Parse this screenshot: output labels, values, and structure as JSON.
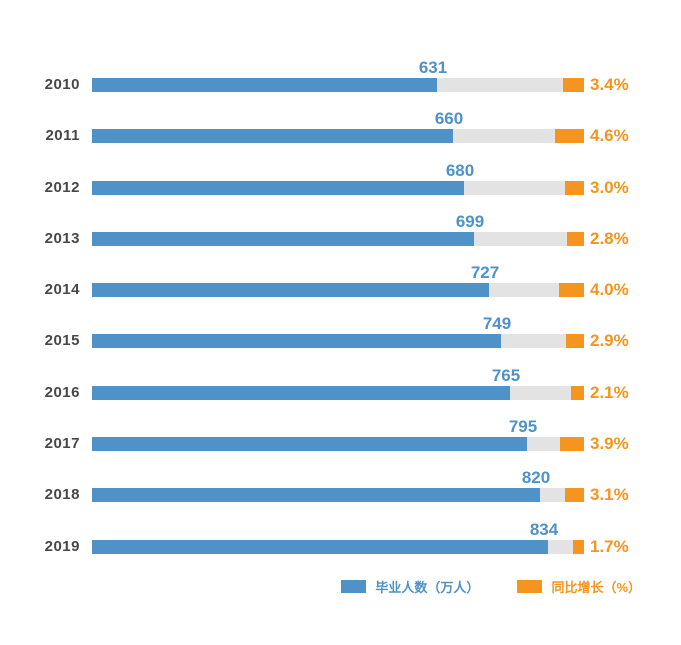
{
  "chart_data": {
    "type": "bar",
    "orientation": "horizontal",
    "title": "",
    "categories": [
      "2010",
      "2011",
      "2012",
      "2013",
      "2014",
      "2015",
      "2016",
      "2017",
      "2018",
      "2019"
    ],
    "series": [
      {
        "name": "毕业人数（万人）",
        "values": [
          631,
          660,
          680,
          699,
          727,
          749,
          765,
          795,
          820,
          834
        ],
        "color": "#4e92c8"
      },
      {
        "name": "同比增长（%）",
        "values": [
          3.4,
          4.6,
          3.0,
          2.8,
          4.0,
          2.9,
          2.1,
          3.9,
          3.1,
          1.7
        ],
        "color": "#f5941e"
      }
    ],
    "value_labels": [
      "631",
      "660",
      "680",
      "699",
      "727",
      "749",
      "765",
      "795",
      "820",
      "834"
    ],
    "growth_labels": [
      "3.4%",
      "4.6%",
      "3.0%",
      "2.8%",
      "4.0%",
      "2.9%",
      "2.1%",
      "3.9%",
      "3.1%",
      "1.7%"
    ],
    "value_axis_max": 900,
    "grid": false,
    "legend_position": "bottom-right",
    "track_color": "#e3e3e3",
    "category_label_color": "#474747",
    "background_color": "#ffffff"
  },
  "legend": {
    "items": [
      {
        "label": "毕业人数（万人）",
        "color": "#4e92c8"
      },
      {
        "label": "同比增长（%）",
        "color": "#f5941e"
      }
    ]
  }
}
